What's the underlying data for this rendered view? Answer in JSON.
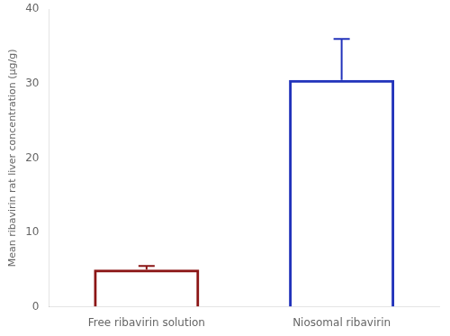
{
  "chart_data": {
    "type": "bar",
    "categories": [
      "Free ribavirin solution",
      "Niosomal ribavirin"
    ],
    "values": [
      5.0,
      30.5
    ],
    "errors_upper": [
      0.5,
      5.5
    ],
    "colors": [
      "#8B1515",
      "#2233BB"
    ],
    "ylabel": "Mean ribavirin rat liver concentration (µg/g)",
    "ylim": [
      0,
      40
    ],
    "yticks": [
      0,
      10,
      20,
      30,
      40
    ],
    "grid": false
  }
}
